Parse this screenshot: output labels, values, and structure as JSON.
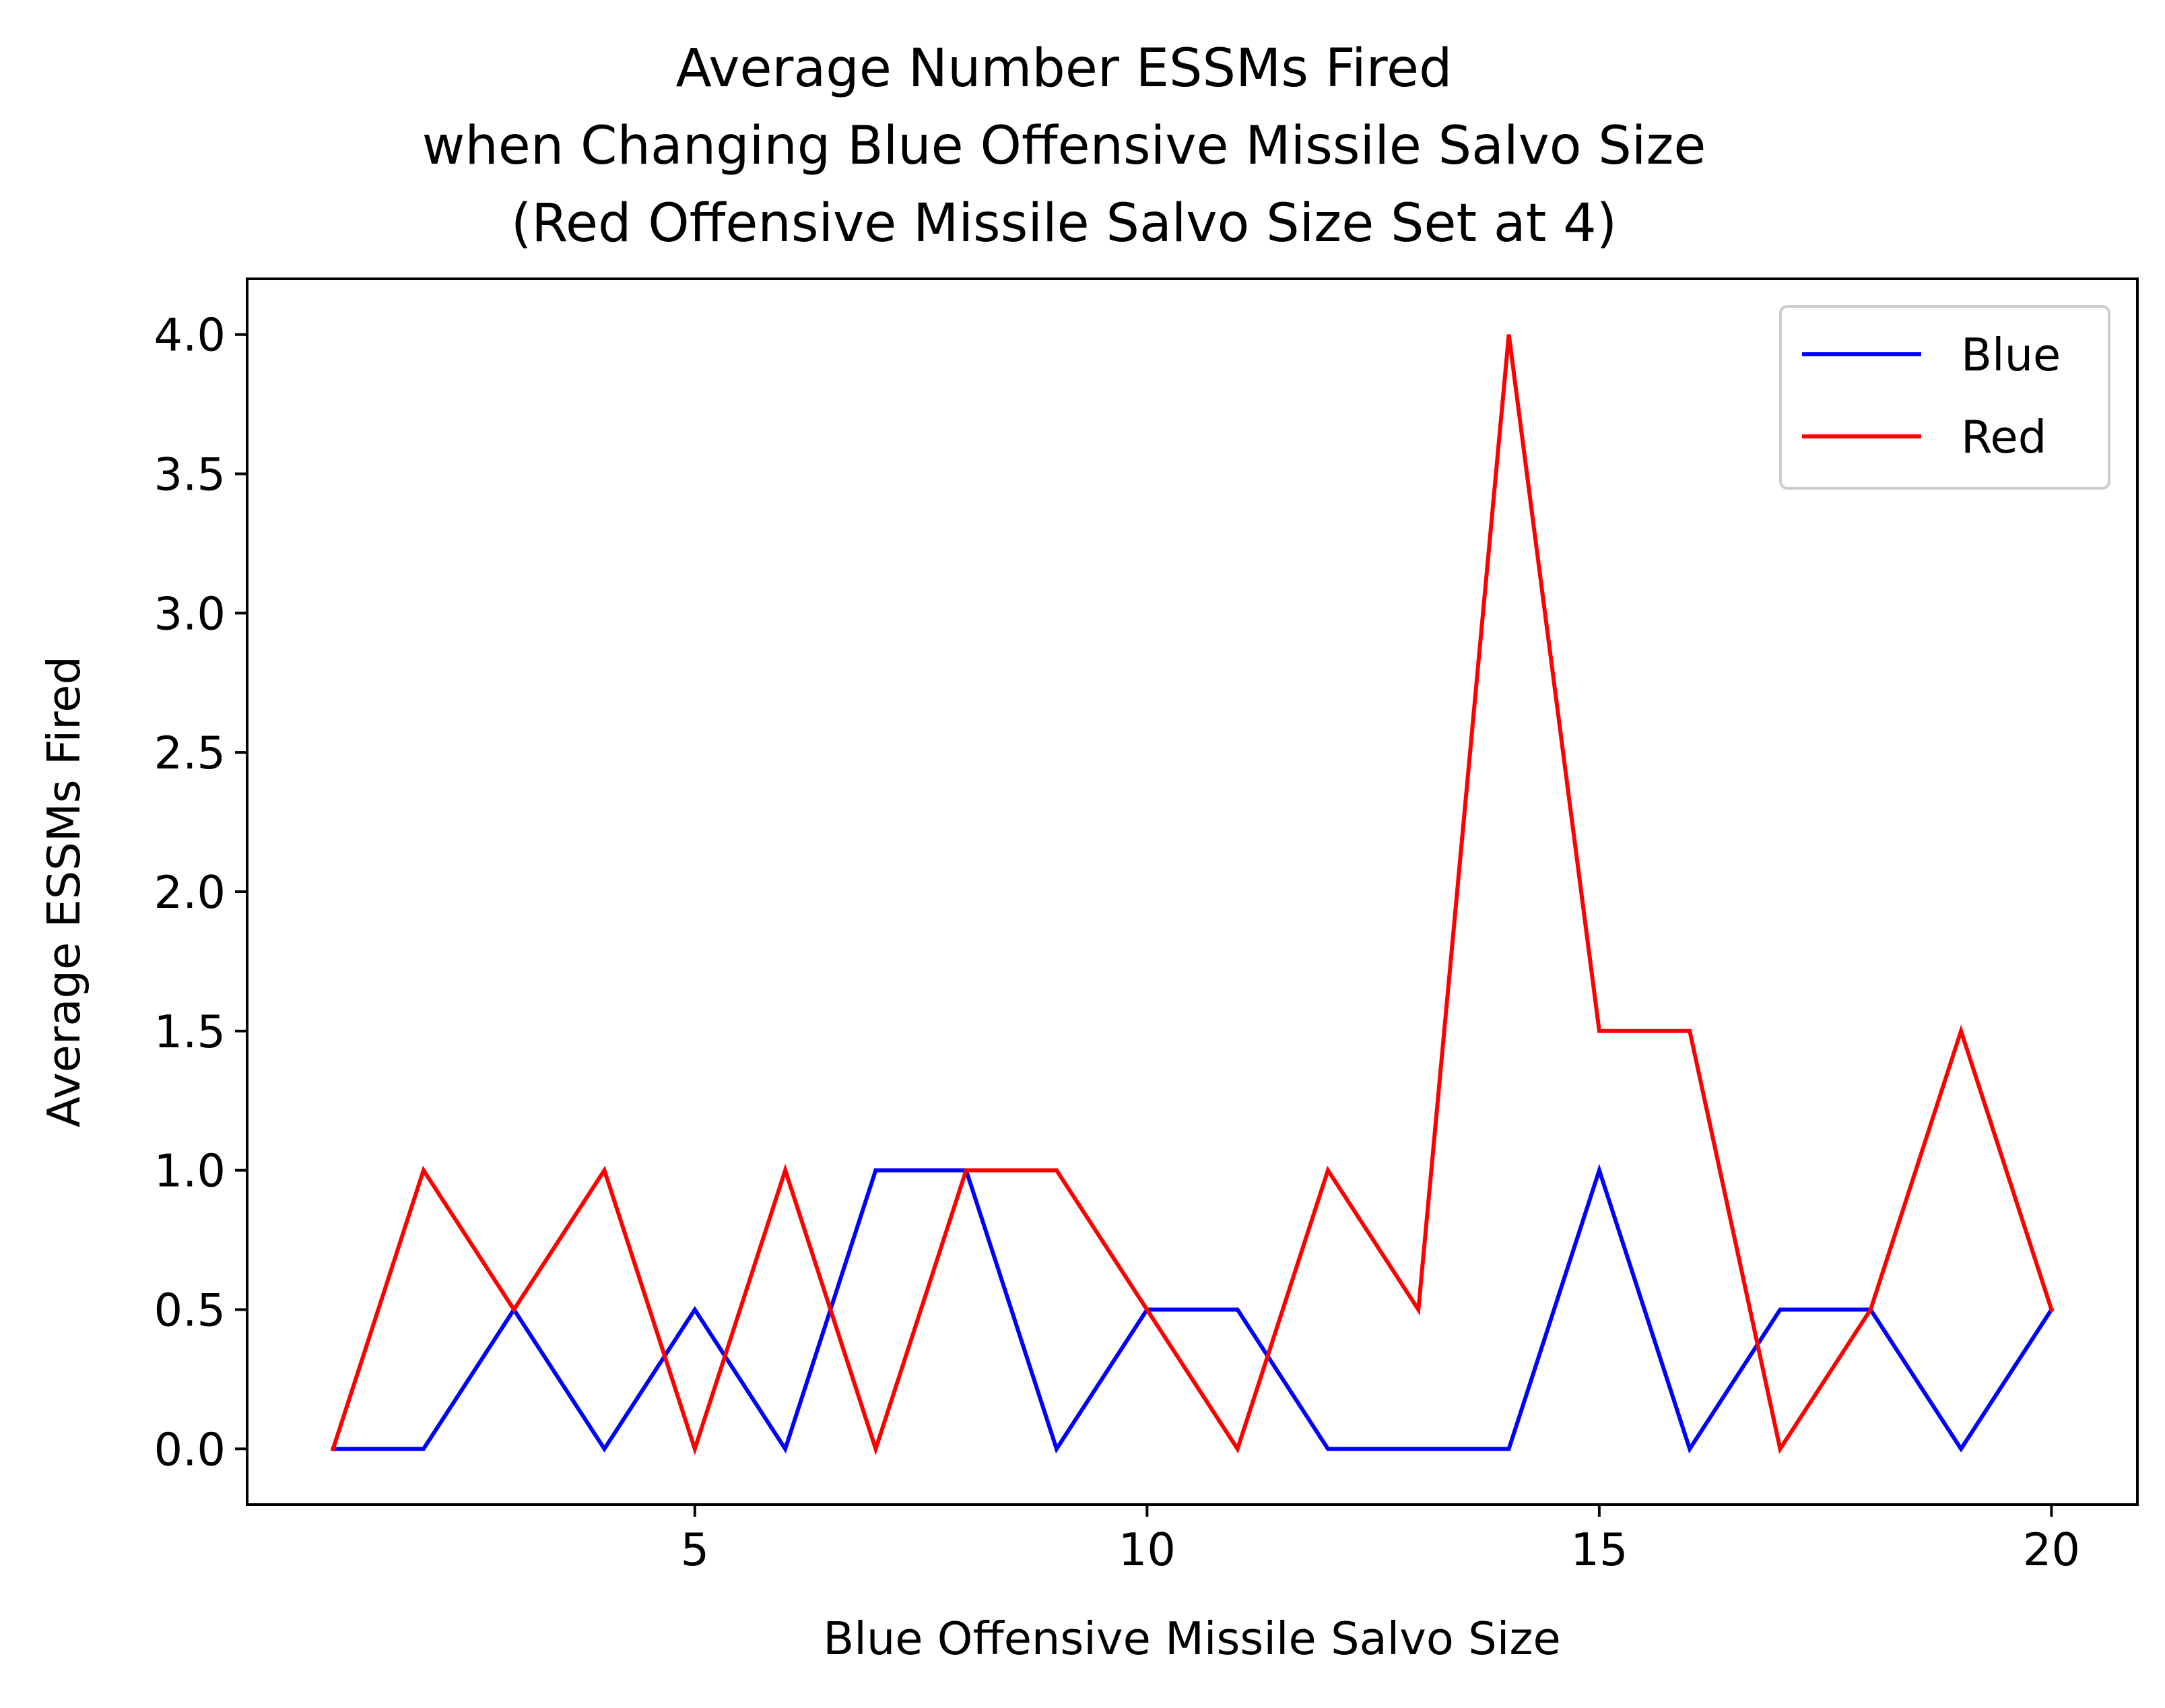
{
  "chart_data": {
    "type": "line",
    "title_lines": [
      "Average Number ESSMs Fired",
      "when Changing Blue Offensive Missile Salvo Size",
      "(Red Offensive Missile Salvo Size Set at 4)"
    ],
    "xlabel": "Blue Offensive Missile Salvo Size",
    "ylabel": "Average ESSMs Fired",
    "xlim": [
      0.05,
      20.95
    ],
    "ylim": [
      -0.2,
      4.2
    ],
    "xticks": [
      5,
      10,
      15,
      20
    ],
    "xtick_labels": [
      "5",
      "10",
      "15",
      "20"
    ],
    "yticks": [
      0.0,
      0.5,
      1.0,
      1.5,
      2.0,
      2.5,
      3.0,
      3.5,
      4.0
    ],
    "ytick_labels": [
      "0.0",
      "0.5",
      "1.0",
      "1.5",
      "2.0",
      "2.5",
      "3.0",
      "3.5",
      "4.0"
    ],
    "grid": false,
    "legend_position": "top-right",
    "x": [
      1,
      2,
      3,
      4,
      5,
      6,
      7,
      8,
      9,
      10,
      11,
      12,
      13,
      14,
      15,
      16,
      17,
      18,
      19,
      20
    ],
    "series": [
      {
        "name": "Blue",
        "color": "#0000ff",
        "values": [
          0,
          0,
          0.5,
          0,
          0.5,
          0,
          1,
          1,
          0,
          0.5,
          0.5,
          0,
          0,
          0,
          1,
          0,
          0.5,
          0.5,
          0,
          0.5
        ]
      },
      {
        "name": "Red",
        "color": "#ff0000",
        "values": [
          0,
          1,
          0.5,
          1,
          0,
          1,
          0,
          1,
          1,
          0.5,
          0,
          1,
          0.5,
          4,
          1.5,
          1.5,
          0,
          0.5,
          1.5,
          0.5
        ]
      }
    ]
  }
}
